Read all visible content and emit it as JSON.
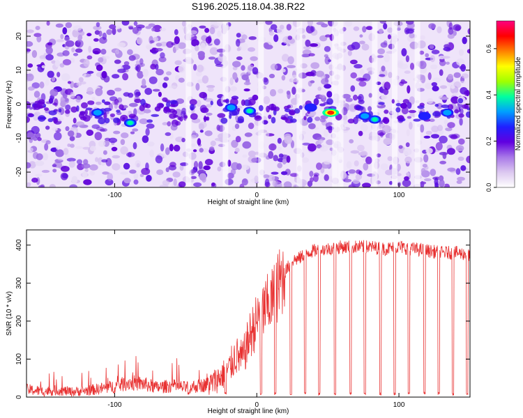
{
  "figure": {
    "title": "S196.2025.118.04.38.R22"
  },
  "chart_data": [
    {
      "type": "heatmap",
      "title": "S196.2025.118.04.38.R22",
      "xlabel": "Height of straight line (km)",
      "ylabel": "Frequency (Hz)",
      "xlim": [
        -162,
        150
      ],
      "ylim": [
        -24.5,
        24.5
      ],
      "xticks": [
        -100,
        0,
        100
      ],
      "yticks": [
        -20,
        -10,
        0,
        10,
        20
      ],
      "colorbar": {
        "label": "Normalized spectral amplitude",
        "range": [
          0.0,
          0.72
        ],
        "ticks": [
          "0.0",
          "0.2",
          "0.4",
          "0.6"
        ],
        "colormap": [
          "#ffffff",
          "#dcc8f0",
          "#a878e8",
          "#6000e0",
          "#2020ff",
          "#00a0ff",
          "#00ffa0",
          "#a0ff00",
          "#ffff00",
          "#ff8000",
          "#ff0000",
          "#ff0080"
        ]
      },
      "peaks": [
        {
          "x": -112,
          "y": -2.5,
          "value": 0.2
        },
        {
          "x": -89,
          "y": -5.5,
          "value": 0.22
        },
        {
          "x": -18,
          "y": -1.0,
          "value": 0.18
        },
        {
          "x": -5,
          "y": -2.0,
          "value": 0.3
        },
        {
          "x": 38,
          "y": -1.0,
          "value": 0.15
        },
        {
          "x": 52,
          "y": -2.5,
          "value": 0.72
        },
        {
          "x": 76,
          "y": -3.5,
          "value": 0.2
        },
        {
          "x": 83,
          "y": -4.5,
          "value": 0.3
        },
        {
          "x": 118,
          "y": -3.5,
          "value": 0.14
        },
        {
          "x": 134,
          "y": -2.5,
          "value": 0.16
        }
      ],
      "low_amplitude_columns_x": [
        -48,
        -22,
        3,
        30,
        55,
        59,
        83,
        97,
        113
      ]
    },
    {
      "type": "line",
      "xlabel": "Height of straight line (km)",
      "ylabel": "SNR (10 * v/v)",
      "xlim": [
        -162,
        150
      ],
      "ylim": [
        0,
        440
      ],
      "xticks": [
        -100,
        0,
        100
      ],
      "yticks": [
        0,
        100,
        200,
        300,
        400
      ],
      "color": "#e83030",
      "x": [
        -162,
        -150,
        -140,
        -130,
        -120,
        -110,
        -100,
        -90,
        -80,
        -70,
        -60,
        -50,
        -40,
        -32,
        -25,
        -20,
        -15,
        -10,
        -5,
        0,
        5,
        10,
        15,
        20,
        25,
        30,
        35,
        40,
        50,
        60,
        70,
        80,
        90,
        100,
        110,
        120,
        130,
        140,
        150
      ],
      "y": [
        20,
        15,
        18,
        14,
        17,
        22,
        28,
        38,
        35,
        25,
        30,
        25,
        30,
        35,
        55,
        70,
        110,
        100,
        160,
        200,
        230,
        250,
        290,
        330,
        360,
        365,
        380,
        385,
        390,
        395,
        395,
        395,
        390,
        395,
        390,
        385,
        380,
        380,
        375
      ],
      "dropouts_x": [
        -48,
        -22,
        3,
        13,
        24,
        34,
        44,
        55,
        66,
        76,
        87,
        97,
        107,
        118,
        128,
        138,
        148
      ]
    }
  ]
}
